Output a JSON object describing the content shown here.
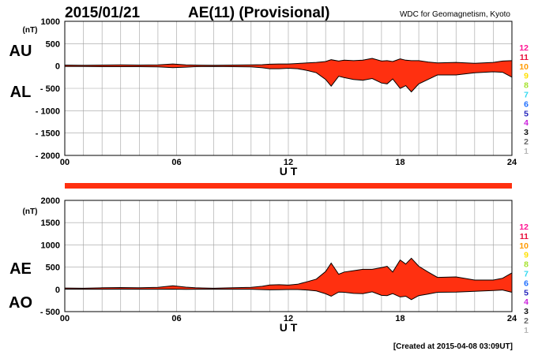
{
  "header": {
    "date": "2015/01/21",
    "title": "AE(11) (Provisional)",
    "source": "WDC for Geomagnetism, Kyoto"
  },
  "footer": {
    "created": "[Created at 2015-04-08 03:09UT]"
  },
  "colors": {
    "fill": "#ff3010",
    "line": "#000000",
    "grid": "#a0a0a0",
    "separator_bar": "#ff3010"
  },
  "station_scale": [
    {
      "label": "12",
      "color": "#ff1493"
    },
    {
      "label": "11",
      "color": "#e8103c"
    },
    {
      "label": "10",
      "color": "#ff9a00"
    },
    {
      "label": "9",
      "color": "#ffe000"
    },
    {
      "label": "8",
      "color": "#a6e22e"
    },
    {
      "label": "7",
      "color": "#30d8f0"
    },
    {
      "label": "6",
      "color": "#1f6fff"
    },
    {
      "label": "5",
      "color": "#2222bb"
    },
    {
      "label": "4",
      "color": "#cc22dd"
    },
    {
      "label": "3",
      "color": "#111111"
    },
    {
      "label": "2",
      "color": "#666666"
    },
    {
      "label": "1",
      "color": "#b8b8b8"
    }
  ],
  "chart_data": [
    {
      "type": "area",
      "panel": "AU/AL",
      "series_labels": [
        "AU",
        "AL"
      ],
      "unit": "(nT)",
      "xlabel": "U T",
      "xlim": [
        0,
        24
      ],
      "xticks": [
        "00",
        "06",
        "12",
        "18",
        "24"
      ],
      "ylim": [
        -2000,
        1000
      ],
      "yticks": [
        "1000",
        "500",
        "0",
        "- 500",
        "- 1000",
        "- 1500",
        "- 2000"
      ],
      "ytick_values": [
        1000,
        500,
        0,
        -500,
        -1000,
        -1500,
        -2000
      ],
      "grid": true,
      "x": [
        0,
        1,
        2,
        3,
        4,
        5,
        5.8,
        6.5,
        7,
        8,
        9,
        10,
        10.6,
        11,
        11.5,
        12,
        12.5,
        13,
        13.5,
        14,
        14.3,
        14.7,
        15,
        15.5,
        16,
        16.5,
        17,
        17.3,
        17.6,
        18,
        18.3,
        18.6,
        19,
        19.5,
        20,
        21,
        22,
        23,
        23.5,
        24
      ],
      "series": [
        {
          "name": "AU",
          "values": [
            20,
            15,
            20,
            25,
            20,
            25,
            45,
            25,
            20,
            15,
            20,
            25,
            30,
            40,
            45,
            45,
            55,
            70,
            80,
            100,
            140,
            110,
            130,
            120,
            130,
            170,
            110,
            120,
            100,
            160,
            130,
            120,
            120,
            90,
            70,
            80,
            60,
            80,
            110,
            120
          ]
        },
        {
          "name": "AL",
          "values": [
            -10,
            -10,
            -15,
            -15,
            -15,
            -20,
            -35,
            -25,
            -15,
            -10,
            -15,
            -20,
            -40,
            -60,
            -60,
            -50,
            -60,
            -100,
            -150,
            -300,
            -450,
            -230,
            -260,
            -300,
            -320,
            -280,
            -380,
            -400,
            -290,
            -500,
            -440,
            -580,
            -400,
            -300,
            -200,
            -200,
            -150,
            -130,
            -140,
            -250
          ]
        }
      ]
    },
    {
      "type": "area",
      "panel": "AE/AO",
      "series_labels": [
        "AE",
        "AO"
      ],
      "unit": "(nT)",
      "xlabel": "U T",
      "xlim": [
        0,
        24
      ],
      "xticks": [
        "00",
        "06",
        "12",
        "18",
        "24"
      ],
      "ylim": [
        -500,
        2000
      ],
      "yticks": [
        "2000",
        "1500",
        "1000",
        "500",
        "0",
        "- 500"
      ],
      "ytick_values": [
        2000,
        1500,
        1000,
        500,
        0,
        -500
      ],
      "grid": true,
      "x": [
        0,
        1,
        2,
        3,
        4,
        5,
        5.8,
        6.5,
        7,
        8,
        9,
        10,
        10.6,
        11,
        11.5,
        12,
        12.5,
        13,
        13.5,
        14,
        14.3,
        14.7,
        15,
        15.5,
        16,
        16.5,
        17,
        17.3,
        17.6,
        18,
        18.3,
        18.6,
        19,
        19.5,
        20,
        21,
        22,
        23,
        23.5,
        24
      ],
      "series": [
        {
          "name": "AE",
          "values": [
            30,
            25,
            35,
            40,
            35,
            45,
            80,
            50,
            35,
            25,
            35,
            45,
            70,
            100,
            105,
            95,
            115,
            170,
            230,
            400,
            590,
            340,
            390,
            420,
            450,
            450,
            490,
            520,
            390,
            660,
            570,
            700,
            520,
            390,
            270,
            280,
            210,
            210,
            250,
            370
          ]
        },
        {
          "name": "AO",
          "values": [
            5,
            3,
            3,
            5,
            3,
            3,
            5,
            0,
            3,
            3,
            3,
            3,
            -5,
            -10,
            -8,
            -3,
            -3,
            -15,
            -35,
            -100,
            -155,
            -60,
            -65,
            -90,
            -95,
            -55,
            -135,
            -140,
            -95,
            -170,
            -155,
            -230,
            -140,
            -105,
            -65,
            -60,
            -45,
            -25,
            -15,
            -65
          ]
        }
      ]
    }
  ]
}
